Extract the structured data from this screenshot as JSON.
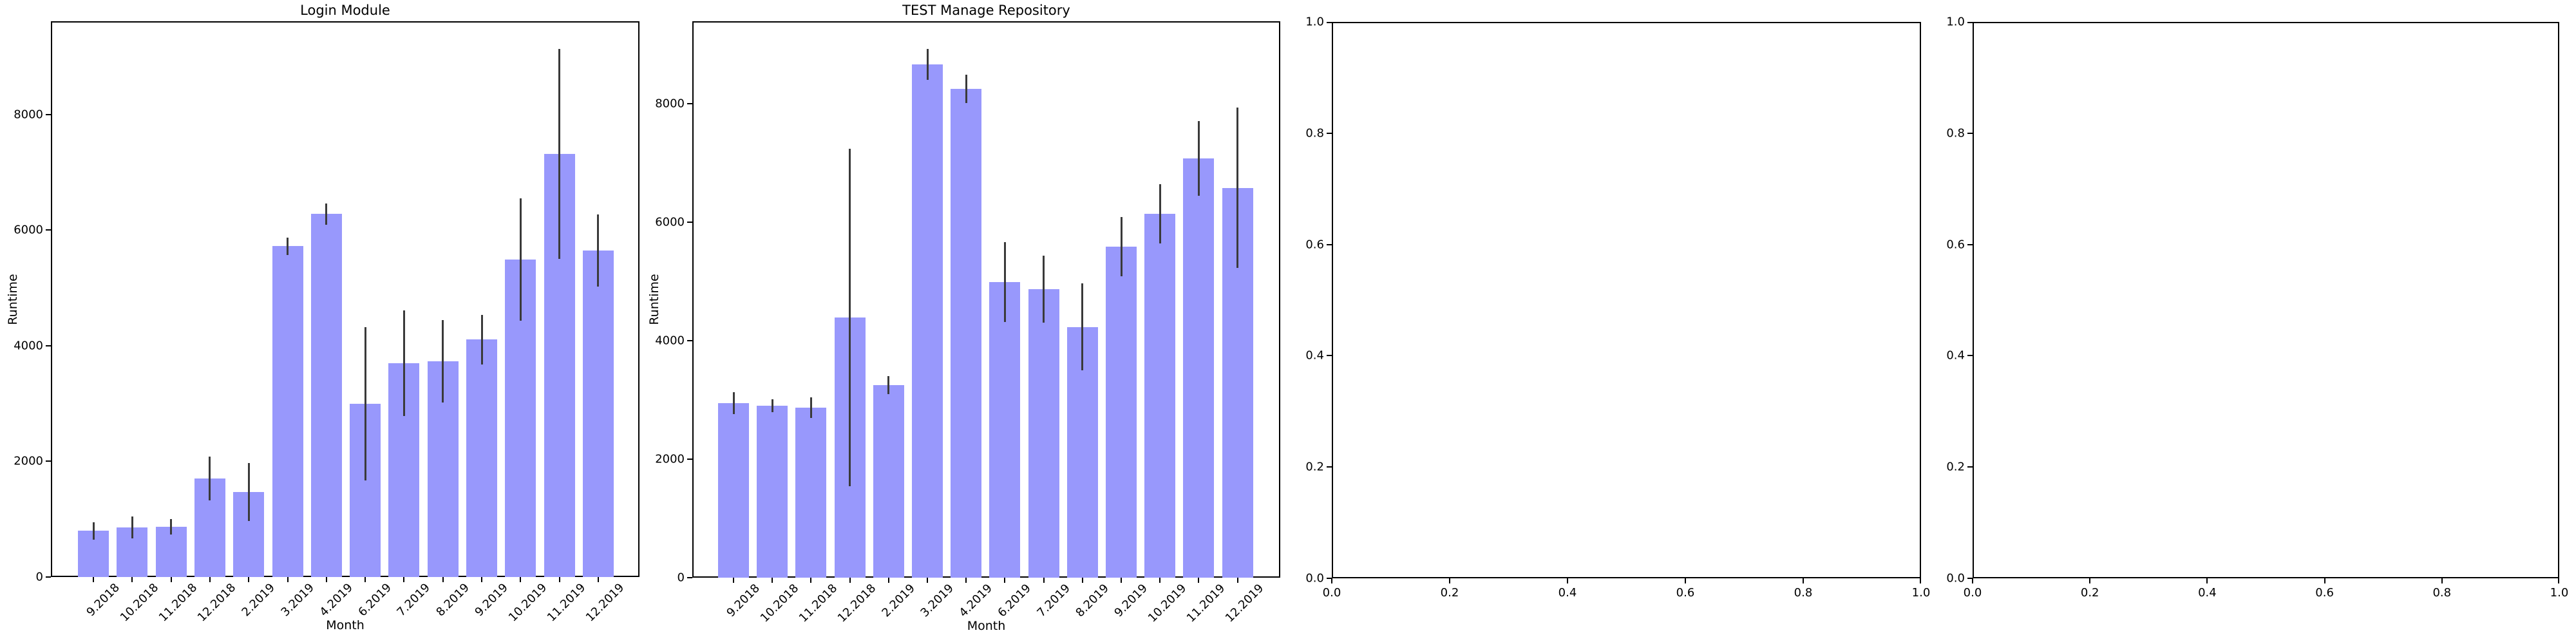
{
  "figure": {
    "background": "#ffffff",
    "bar_color": "#9898fc",
    "error_bar_color": "#3a3a3a",
    "axis_color": "#000000"
  },
  "chart_data": [
    {
      "type": "bar",
      "title": "Login Module",
      "xlabel": "Month",
      "ylabel": "Runtime",
      "categories": [
        "9.2018",
        "10.2018",
        "11.2018",
        "12.2018",
        "2.2019",
        "3.2019",
        "4.2019",
        "6.2019",
        "7.2019",
        "8.2019",
        "9.2019",
        "10.2019",
        "11.2019",
        "12.2019"
      ],
      "values": [
        800,
        855,
        870,
        1705,
        1470,
        5725,
        6280,
        3000,
        3700,
        3730,
        4110,
        5490,
        7320,
        5650
      ],
      "errors": [
        150,
        190,
        135,
        375,
        500,
        150,
        185,
        1325,
        915,
        710,
        430,
        1060,
        1815,
        625
      ],
      "yticks": [
        0,
        2000,
        4000,
        6000,
        8000
      ],
      "ylim": [
        0,
        9615
      ],
      "grid": false,
      "legend": null
    },
    {
      "type": "bar",
      "title": "TEST Manage Repository",
      "xlabel": "Month",
      "ylabel": "Runtime",
      "categories": [
        "9.2018",
        "10.2018",
        "11.2018",
        "12.2018",
        "2.2019",
        "3.2019",
        "4.2019",
        "6.2019",
        "7.2019",
        "8.2019",
        "9.2019",
        "10.2019",
        "11.2019",
        "12.2019"
      ],
      "values": [
        2945,
        2900,
        2870,
        4390,
        3250,
        8660,
        8250,
        4990,
        4870,
        4230,
        5590,
        6140,
        7080,
        6580
      ],
      "errors": [
        180,
        110,
        170,
        2850,
        150,
        260,
        235,
        670,
        565,
        735,
        500,
        505,
        630,
        1350
      ],
      "yticks": [
        0,
        2000,
        4000,
        6000,
        8000
      ],
      "ylim": [
        0,
        9390
      ],
      "grid": false,
      "legend": null
    },
    {
      "type": "empty",
      "title": "",
      "xticklabels": [
        "0.0",
        "0.2",
        "0.4",
        "0.6",
        "0.8",
        "1.0"
      ],
      "yticklabels": [
        "0.0",
        "0.2",
        "0.4",
        "0.6",
        "0.8",
        "1.0"
      ],
      "xlim": [
        0.0,
        1.0
      ],
      "ylim": [
        0.0,
        1.0
      ],
      "grid": false,
      "legend": null
    },
    {
      "type": "empty",
      "title": "",
      "xticklabels": [
        "0.0",
        "0.2",
        "0.4",
        "0.6",
        "0.8",
        "1.0"
      ],
      "yticklabels": [
        "0.0",
        "0.2",
        "0.4",
        "0.6",
        "0.8",
        "1.0"
      ],
      "xlim": [
        0.0,
        1.0
      ],
      "ylim": [
        0.0,
        1.0
      ],
      "grid": false,
      "legend": null
    }
  ]
}
